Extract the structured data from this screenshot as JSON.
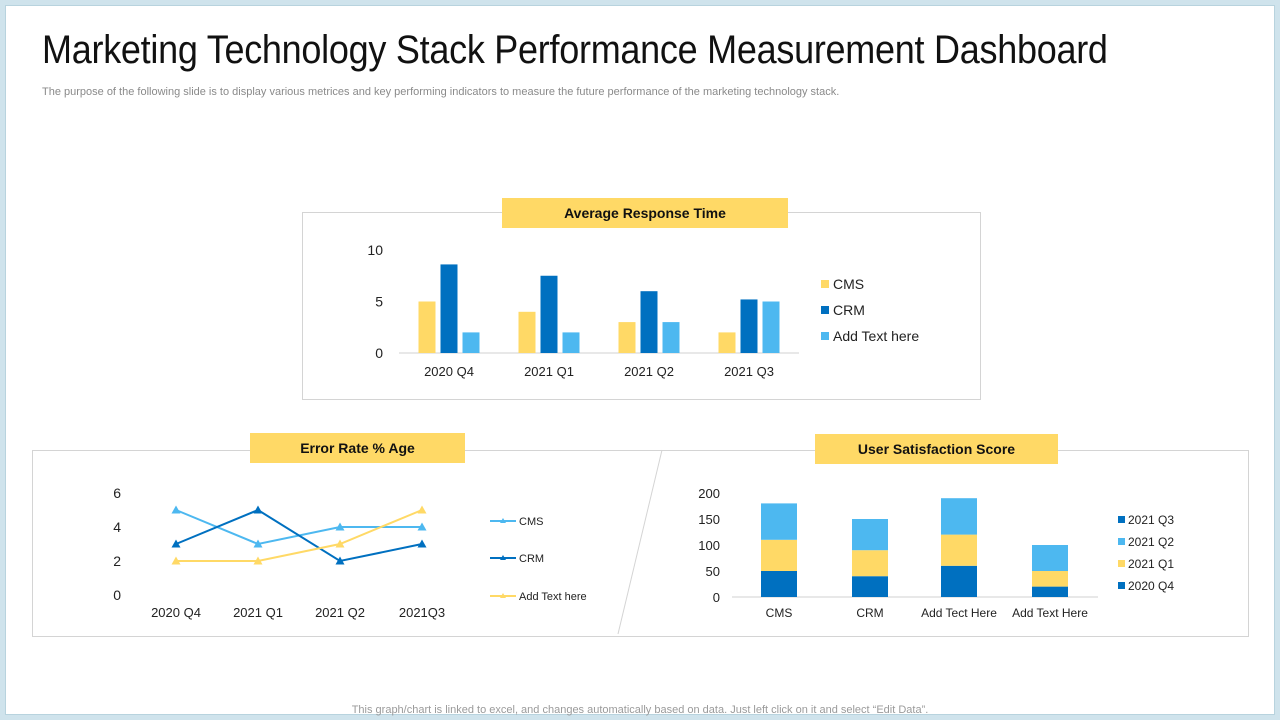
{
  "slide": {
    "title": "Marketing Technology Stack Performance Measurement Dashboard",
    "subtitle": "The purpose of the following slide is to display various metrices and key performing indicators to measure the future performance of the marketing technology stack.",
    "footer": "This graph/chart is linked to excel, and changes automatically  based on data. Just left click on it and select “Edit Data”."
  },
  "colors": {
    "yellow": "#ffd966",
    "dark_blue": "#0070c0",
    "light_blue": "#4db8f0",
    "banner": "#ffd966"
  },
  "chart_data": [
    {
      "type": "bar",
      "title": "Average Response Time",
      "categories": [
        "2020 Q4",
        "2021 Q1",
        "2021 Q2",
        "2021 Q3"
      ],
      "series": [
        {
          "name": "CMS",
          "values": [
            5,
            4,
            3,
            2
          ],
          "color": "#ffd966"
        },
        {
          "name": "CRM",
          "values": [
            8.6,
            7.5,
            6,
            5.2
          ],
          "color": "#0070c0"
        },
        {
          "name": "Add Text here",
          "values": [
            2,
            2,
            3,
            5
          ],
          "color": "#4db8f0"
        }
      ],
      "ylim": [
        0,
        10
      ],
      "yticks": [
        "0",
        "5",
        "10"
      ],
      "legend": "right"
    },
    {
      "type": "line",
      "title": "Error Rate % Age",
      "categories": [
        "2020 Q4",
        "2021 Q1",
        "2021 Q2",
        "2021Q3"
      ],
      "series": [
        {
          "name": "CMS",
          "values": [
            5,
            3,
            4,
            4
          ],
          "color": "#4db8f0"
        },
        {
          "name": "CRM",
          "values": [
            3,
            5,
            2,
            3
          ],
          "color": "#0070c0"
        },
        {
          "name": "Add Text here",
          "values": [
            2,
            2,
            3,
            5
          ],
          "color": "#ffd966"
        }
      ],
      "ylim": [
        0,
        6
      ],
      "yticks": [
        "0",
        "2",
        "4",
        "6"
      ],
      "legend": "right"
    },
    {
      "type": "bar",
      "stacked": true,
      "title": "User Satisfaction Score",
      "categories": [
        "CMS",
        "CRM",
        "Add Tect Here",
        "Add Text Here"
      ],
      "series": [
        {
          "name": "2020 Q4",
          "values": [
            50,
            40,
            60,
            20
          ],
          "color": "#0070c0"
        },
        {
          "name": "2021 Q1",
          "values": [
            60,
            50,
            60,
            30
          ],
          "color": "#ffd966"
        },
        {
          "name": "2021 Q2",
          "values": [
            70,
            60,
            70,
            50
          ],
          "color": "#4db8f0"
        },
        {
          "name": "2021 Q3",
          "values": [
            0,
            0,
            0,
            0
          ],
          "color": "#0070c0"
        }
      ],
      "ylim": [
        0,
        200
      ],
      "yticks": [
        "0",
        "50",
        "100",
        "150",
        "200"
      ],
      "legend": "right",
      "legend_order": [
        "2021 Q3",
        "2021 Q2",
        "2021 Q1",
        "2020 Q4"
      ]
    }
  ]
}
